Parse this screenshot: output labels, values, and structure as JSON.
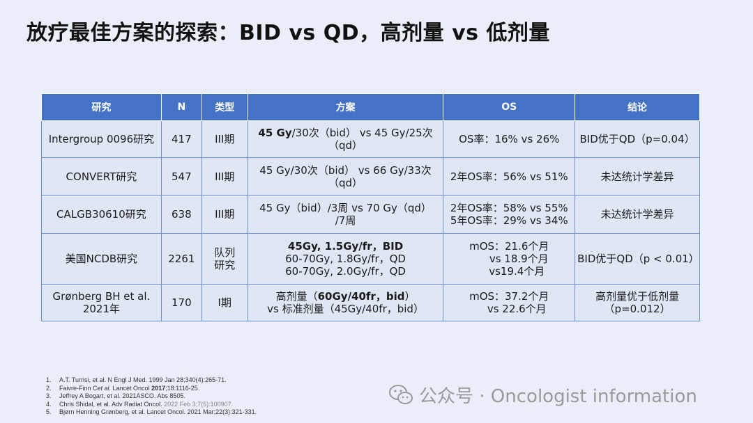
{
  "title": "放疗最佳方案的探索：BID vs QD，高剂量 vs 低剂量",
  "table": {
    "headers": [
      "研究",
      "N",
      "类型",
      "方案",
      "OS",
      "结论"
    ],
    "rows": [
      {
        "study": [
          "Intergroup 0096研究"
        ],
        "n": "417",
        "type": [
          "III期"
        ],
        "plan": [
          "45 Gy/30次（bid） vs 45 Gy/25次",
          "（qd）"
        ],
        "plan_bold_prefix": "45 Gy",
        "plan_first_rest": "/30次（bid） vs 45 Gy/25次",
        "os": [
          "OS率：16% vs 26%"
        ],
        "conclusion": [
          "BID优于QD（p=0.04）"
        ]
      },
      {
        "study": [
          "CONVERT研究"
        ],
        "n": "547",
        "type": [
          "III期"
        ],
        "plan": [
          "45 Gy/30次（bid） vs 66 Gy/33次",
          "（qd）"
        ],
        "os": [
          "2年OS率：56% vs 51%"
        ],
        "conclusion": [
          "未达统计学差异"
        ]
      },
      {
        "study": [
          "CALGB30610研究"
        ],
        "n": "638",
        "type": [
          "III期"
        ],
        "plan": [
          "45 Gy（bid）/3周 vs 70 Gy（qd）",
          "/7周"
        ],
        "os": [
          "2年OS率：58% vs 55%",
          "5年OS率：29% vs 34%"
        ],
        "conclusion": [
          "未达统计学差异"
        ]
      },
      {
        "study": [
          "美国NCDB研究"
        ],
        "n": "2261",
        "type": [
          "队列",
          "研究"
        ],
        "plan": [
          "45Gy, 1.5Gy/fr，BID",
          "60-70Gy, 1.8Gy/fr，QD",
          "60-70Gy, 2.0Gy/fr，QD"
        ],
        "os": [
          "mOS：21.6个月",
          "vs 18.9个月",
          "vs19.4个月"
        ],
        "conclusion": [
          "BID优于QD（p < 0.01）"
        ]
      },
      {
        "study": [
          "Grønberg BH et al.",
          "2021年"
        ],
        "n": "170",
        "type": [
          "I期"
        ],
        "plan": [
          "高剂量（60Gy/40fr，bid）",
          "vs 标准剂量（45Gy/40fr，bid）"
        ],
        "plan_first_pre": "高剂量（",
        "plan_first_bold": "60Gy/40fr，bid",
        "plan_first_post": "）",
        "os": [
          "mOS：37.2个月",
          "vs 22.6个月"
        ],
        "conclusion": [
          "高剂量优于低剂量",
          "（p=0.012）"
        ]
      }
    ]
  },
  "references": [
    {
      "num": "1.",
      "text": "A.T. Turrisi, et al. N Engl J Med. 1999 Jan 28;340(4):265-71."
    },
    {
      "num": "2.",
      "pre": "Faivre-Finn C",
      "ital": "et al.",
      "mid": " Lancet Oncol ",
      "bold": "2017",
      "post": ";18:1116-25."
    },
    {
      "num": "3.",
      "text": "Jeffrey A Bogart, et al. 2021ASCO. Abs 8505."
    },
    {
      "num": "4.",
      "text": "Chris Shidal, et al. Adv Radiat Oncol. ",
      "grey": "2022 Feb 3;7(5):100907."
    },
    {
      "num": "5.",
      "text": "Bjørn Henning Grønberg, et al. Lancet Oncol. 2021 Mar;22(3):321-331."
    }
  ],
  "watermark": {
    "icon": "wechat-icon",
    "text": "公众号 · Oncologist information"
  }
}
